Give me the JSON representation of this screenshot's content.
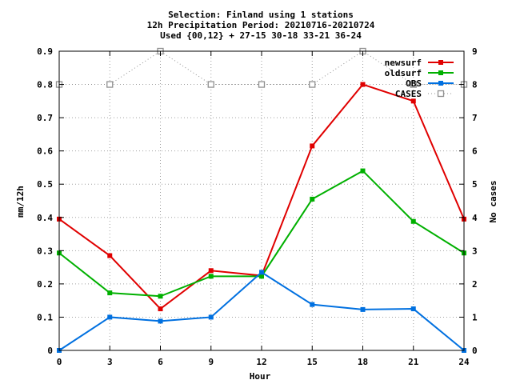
{
  "chart_data": {
    "type": "line",
    "title_lines": [
      "Selection: Finland using     1 stations",
      "12h Precipitation   Period: 20210716-20210724",
      "Used {00,12} + 27-15 30-18 33-21 36-24"
    ],
    "xlabel": "Hour",
    "ylabel": "mm/12h",
    "y2label": "No cases",
    "x": [
      0,
      3,
      6,
      9,
      12,
      15,
      18,
      21,
      24
    ],
    "xticks": [
      "0",
      "3",
      "6",
      "9",
      "12",
      "15",
      "18",
      "21",
      "24"
    ],
    "yticks": [
      "0",
      "0.1",
      "0.2",
      "0.3",
      "0.4",
      "0.5",
      "0.6",
      "0.7",
      "0.8",
      "0.9"
    ],
    "y2ticks": [
      "0",
      "1",
      "2",
      "3",
      "4",
      "5",
      "6",
      "7",
      "8",
      "9"
    ],
    "xlim": [
      0,
      24
    ],
    "ylim": [
      0,
      0.9
    ],
    "y2lim": [
      0,
      9
    ],
    "grid": true,
    "legend_position": "top-right",
    "series": [
      {
        "name": "newsurf",
        "color": "#e00000",
        "marker": "filled-square",
        "axis": "left",
        "values": [
          0.395,
          0.285,
          0.125,
          0.24,
          0.225,
          0.615,
          0.8,
          0.75,
          0.395
        ]
      },
      {
        "name": "oldsurf",
        "color": "#00b000",
        "marker": "filled-square",
        "axis": "left",
        "values": [
          0.293,
          0.173,
          0.163,
          0.223,
          0.223,
          0.455,
          0.54,
          0.388,
          0.293
        ]
      },
      {
        "name": "OBS",
        "color": "#0070e0",
        "marker": "filled-square",
        "axis": "left",
        "values": [
          0.0,
          0.1,
          0.088,
          0.1,
          0.235,
          0.138,
          0.123,
          0.125,
          0.0
        ]
      },
      {
        "name": "CASES",
        "color": "#909090",
        "marker": "open-square",
        "axis": "right",
        "dotted": true,
        "values": [
          8,
          8,
          9,
          8,
          8,
          8,
          9,
          8,
          8
        ]
      }
    ]
  }
}
